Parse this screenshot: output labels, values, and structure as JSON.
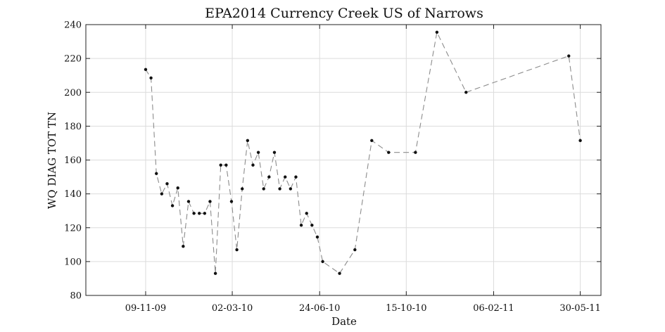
{
  "chart_data": {
    "type": "line",
    "title": "EPA2014 Currency Creek US of Narrows",
    "xlabel": "Date",
    "ylabel": "WQ DIAG TOT TN",
    "xlim": [
      "2009-08-23",
      "2011-06-26"
    ],
    "ylim": [
      80,
      240
    ],
    "yticks": [
      80,
      100,
      120,
      140,
      160,
      180,
      200,
      220,
      240
    ],
    "xticks": [
      {
        "date": "2009-11-09",
        "label": "09-11-09"
      },
      {
        "date": "2010-03-02",
        "label": "02-03-10"
      },
      {
        "date": "2010-06-24",
        "label": "24-06-10"
      },
      {
        "date": "2010-10-15",
        "label": "15-10-10"
      },
      {
        "date": "2011-02-06",
        "label": "06-02-11"
      },
      {
        "date": "2011-05-30",
        "label": "30-05-11"
      }
    ],
    "grid": true,
    "series": [
      {
        "x": [
          "2009-11-09",
          "2009-11-16",
          "2009-11-23",
          "2009-11-30",
          "2009-12-07",
          "2009-12-14",
          "2009-12-21",
          "2009-12-28",
          "2010-01-04",
          "2010-01-11",
          "2010-01-18",
          "2010-01-25",
          "2010-02-01",
          "2010-02-08",
          "2010-02-15",
          "2010-02-22",
          "2010-03-01",
          "2010-03-08",
          "2010-03-15",
          "2010-03-22",
          "2010-03-29",
          "2010-04-05",
          "2010-04-12",
          "2010-04-19",
          "2010-04-26",
          "2010-05-03",
          "2010-05-10",
          "2010-05-17",
          "2010-05-24",
          "2010-05-31",
          "2010-06-07",
          "2010-06-14",
          "2010-06-21",
          "2010-06-28",
          "2010-07-20",
          "2010-08-09",
          "2010-08-31",
          "2010-09-22",
          "2010-10-27",
          "2010-11-24",
          "2011-01-01",
          "2011-05-15",
          "2011-05-30"
        ],
        "values": [
          213.5,
          208.5,
          152,
          140,
          146,
          133,
          143.5,
          109,
          135.5,
          128.5,
          128.5,
          128.5,
          135.5,
          93,
          157,
          157,
          135.5,
          107,
          143,
          171.5,
          157,
          164.5,
          143,
          150,
          164.5,
          143,
          150,
          143,
          150,
          121.5,
          128.5,
          121.5,
          114.5,
          100,
          93,
          107,
          171.5,
          164.5,
          164.5,
          235.5,
          200,
          221.5,
          171.5
        ]
      }
    ]
  }
}
